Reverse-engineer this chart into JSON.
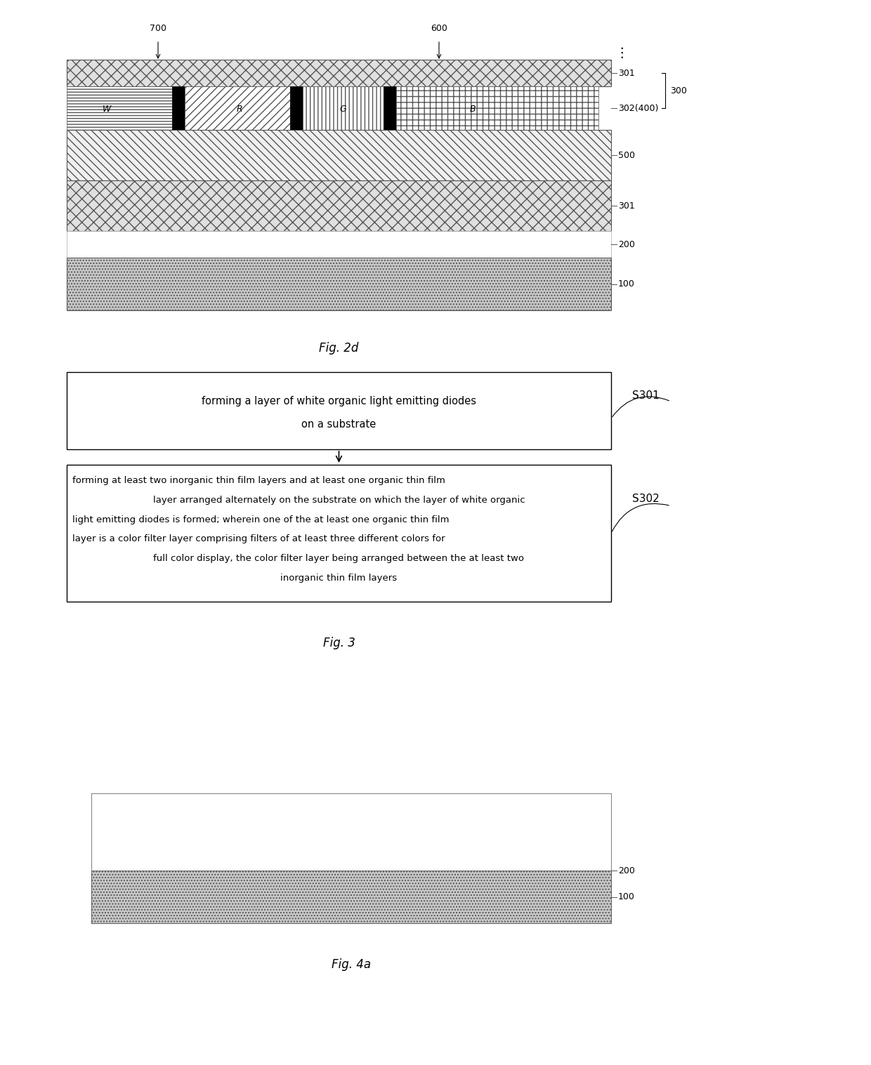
{
  "fig_width": 12.4,
  "fig_height": 15.17,
  "background": "#ffffff",
  "fig2d_label": "Fig. 2d",
  "fig3_label": "Fig. 3",
  "fig4a_label": "Fig. 4a",
  "s301_text": "S301",
  "s302_text": "S302",
  "label_700": "700",
  "label_600": "600",
  "box1_line1": "forming a layer of white organic light emitting diodes",
  "box1_line2": "on a substrate",
  "box2_lines": [
    "forming at least two inorganic thin film layers and at least one organic thin film",
    "layer arranged alternately on the substrate on which the layer of white organic",
    "light emitting diodes is formed; wherein one of the at least one organic thin film",
    "layer is a color filter layer comprising filters of at least three different colors for",
    "full color display, the color filter layer being arranged between the at least two",
    "inorganic thin film layers"
  ]
}
